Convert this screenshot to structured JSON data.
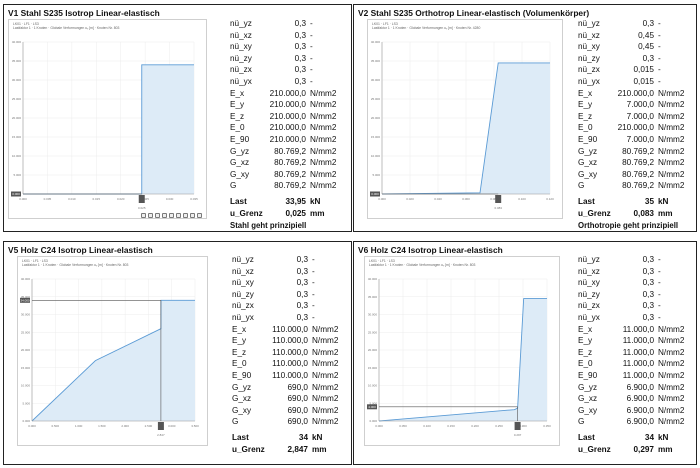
{
  "panels": [
    {
      "title": "V1 Stahl S235 Isotrop Linear-elastisch",
      "plot_header": [
        "LK01 · LF1 · LS3",
        "Lastfaktor 1 · 1 Knoten · Globale Verformungen uᵧ [m] · Knoten Nr. 803"
      ],
      "y_ticks": [
        "40.000",
        "35.000",
        "30.000",
        "25.000",
        "20.000",
        "15.000",
        "10.000",
        "5.000",
        "0.000"
      ],
      "x_ticks": [
        "0.000",
        "0.005",
        "0.010",
        "0.015",
        "0.020",
        "0.025",
        "0.030",
        "0.035"
      ],
      "marker_y": "0.000",
      "marker_x": "0.025",
      "x_axis_label": "Lastfaktor",
      "props": [
        {
          "name": "nü_yz",
          "value": "0,3",
          "unit": "-"
        },
        {
          "name": "nü_xz",
          "value": "0,3",
          "unit": "-"
        },
        {
          "name": "nü_xy",
          "value": "0,3",
          "unit": "-"
        },
        {
          "name": "nü_zy",
          "value": "0,3",
          "unit": "-"
        },
        {
          "name": "nü_zx",
          "value": "0,3",
          "unit": "-"
        },
        {
          "name": "nü_yx",
          "value": "0,3",
          "unit": "-"
        },
        {
          "name": "E_x",
          "value": "210.000,0",
          "unit": "N/mm2"
        },
        {
          "name": "E_y",
          "value": "210.000,0",
          "unit": "N/mm2"
        },
        {
          "name": "E_z",
          "value": "210.000,0",
          "unit": "N/mm2"
        },
        {
          "name": "E_0",
          "value": "210.000,0",
          "unit": "N/mm2"
        },
        {
          "name": "E_90",
          "value": "210.000,0",
          "unit": "N/mm2"
        },
        {
          "name": "G_yz",
          "value": "80.769,2",
          "unit": "N/mm2"
        },
        {
          "name": "G_xz",
          "value": "80.769,2",
          "unit": "N/mm2"
        },
        {
          "name": "G_xy",
          "value": "80.769,2",
          "unit": "N/mm2"
        },
        {
          "name": "G",
          "value": "80.769,2",
          "unit": "N/mm2"
        }
      ],
      "last": {
        "name": "Last",
        "value": "33,95",
        "unit": "kN"
      },
      "ugrenz": {
        "name": "u_Grenz",
        "value": "0,025",
        "unit": "mm"
      },
      "note": "Stahl geht prinzipiell"
    },
    {
      "title": "V2 Stahl S235 Orthotrop Linear-elastisch (Volumenkörper)",
      "plot_header": [
        "LK01 · LF1 · LS3",
        "Lastfaktor 1 · 1 Knoten · Globale Verformungen uᵧ [m] · Knoten Nr. 4280"
      ],
      "y_ticks": [
        "40.000",
        "35.000",
        "30.000",
        "25.000",
        "20.000",
        "15.000",
        "10.000",
        "5.000",
        "0.000"
      ],
      "x_ticks": [
        "0.000",
        "0.020",
        "0.040",
        "0.060",
        "0.080",
        "0.100",
        "0.120"
      ],
      "marker_y": "0.000",
      "marker_x": "0.083",
      "x_axis_label": "Lastfaktor",
      "props": [
        {
          "name": "nü_yz",
          "value": "0,3",
          "unit": "-"
        },
        {
          "name": "nü_xz",
          "value": "0,45",
          "unit": "-"
        },
        {
          "name": "nü_xy",
          "value": "0,45",
          "unit": "-"
        },
        {
          "name": "nü_zy",
          "value": "0,3",
          "unit": "-"
        },
        {
          "name": "nü_zx",
          "value": "0,015",
          "unit": "-"
        },
        {
          "name": "nü_yx",
          "value": "0,015",
          "unit": "-"
        },
        {
          "name": "E_x",
          "value": "210.000,0",
          "unit": "N/mm2"
        },
        {
          "name": "E_y",
          "value": "7.000,0",
          "unit": "N/mm2"
        },
        {
          "name": "E_z",
          "value": "7.000,0",
          "unit": "N/mm2"
        },
        {
          "name": "E_0",
          "value": "210.000,0",
          "unit": "N/mm2"
        },
        {
          "name": "E_90",
          "value": "7.000,0",
          "unit": "N/mm2"
        },
        {
          "name": "G_yz",
          "value": "80.769,2",
          "unit": "N/mm2"
        },
        {
          "name": "G_xz",
          "value": "80.769,2",
          "unit": "N/mm2"
        },
        {
          "name": "G_xy",
          "value": "80.769,2",
          "unit": "N/mm2"
        },
        {
          "name": "G",
          "value": "80.769,2",
          "unit": "N/mm2"
        }
      ],
      "last": {
        "name": "Last",
        "value": "35",
        "unit": "kN"
      },
      "ugrenz": {
        "name": "u_Grenz",
        "value": "0,083",
        "unit": "mm"
      },
      "note": "Orthotropie geht prinzipiell"
    },
    {
      "title": "V5 Holz C24 Isotrop Linear-elastisch",
      "plot_header": [
        "LK01 · LF1 · LS3",
        "Lastfaktor 1 · 1 Knoten · Globale Verformungen uᵧ [m] · Knoten Nr. 803"
      ],
      "y_ticks": [
        "40.000",
        "35.000",
        "30.000",
        "25.000",
        "20.000",
        "15.000",
        "10.000",
        "5.000",
        "0.000"
      ],
      "x_ticks": [
        "0.000",
        "0.500",
        "1.000",
        "1.500",
        "2.000",
        "2.500",
        "3.000",
        "3.500"
      ],
      "marker_y": "34.000",
      "marker_x": "2.847",
      "x_axis_label": "Lastfaktor",
      "props": [
        {
          "name": "nü_yz",
          "value": "0,3",
          "unit": "-"
        },
        {
          "name": "nü_xz",
          "value": "0,3",
          "unit": "-"
        },
        {
          "name": "nü_xy",
          "value": "0,3",
          "unit": "-"
        },
        {
          "name": "nü_zy",
          "value": "0,3",
          "unit": "-"
        },
        {
          "name": "nü_zx",
          "value": "0,3",
          "unit": "-"
        },
        {
          "name": "nü_yx",
          "value": "0,3",
          "unit": "-"
        },
        {
          "name": "E_x",
          "value": "110.000,0",
          "unit": "N/mm2"
        },
        {
          "name": "E_y",
          "value": "110.000,0",
          "unit": "N/mm2"
        },
        {
          "name": "E_z",
          "value": "110.000,0",
          "unit": "N/mm2"
        },
        {
          "name": "E_0",
          "value": "110.000,0",
          "unit": "N/mm2"
        },
        {
          "name": "E_90",
          "value": "110.000,0",
          "unit": "N/mm2"
        },
        {
          "name": "G_yz",
          "value": "690,0",
          "unit": "N/mm2"
        },
        {
          "name": "G_xz",
          "value": "690,0",
          "unit": "N/mm2"
        },
        {
          "name": "G_xy",
          "value": "690,0",
          "unit": "N/mm2"
        },
        {
          "name": "G",
          "value": "690,0",
          "unit": "N/mm2"
        }
      ],
      "last": {
        "name": "Last",
        "value": "34",
        "unit": "kN"
      },
      "ugrenz": {
        "name": "u_Grenz",
        "value": "2,847",
        "unit": "mm"
      },
      "note": ""
    },
    {
      "title": "V6 Holz C24 Isotrop Linear-elastisch",
      "plot_header": [
        "LK01 · LF1 · LS3",
        "Lastfaktor 1 · 1 Knoten · Globale Verformungen uᵧ [m] · Knoten Nr. 803"
      ],
      "y_ticks": [
        "40.000",
        "35.000",
        "30.000",
        "25.000",
        "20.000",
        "15.000",
        "10.000",
        "5.000",
        "0.000"
      ],
      "x_ticks": [
        "0.000",
        "0.050",
        "0.100",
        "0.150",
        "0.200",
        "0.250",
        "0.300",
        "0.350"
      ],
      "marker_y": "4.000",
      "marker_x": "0.297",
      "x_axis_label": "Lastfaktor",
      "props": [
        {
          "name": "nü_yz",
          "value": "0,3",
          "unit": "-"
        },
        {
          "name": "nü_xz",
          "value": "0,3",
          "unit": "-"
        },
        {
          "name": "nü_xy",
          "value": "0,3",
          "unit": "-"
        },
        {
          "name": "nü_zy",
          "value": "0,3",
          "unit": "-"
        },
        {
          "name": "nü_zx",
          "value": "0,3",
          "unit": "-"
        },
        {
          "name": "nü_yx",
          "value": "0,3",
          "unit": "-"
        },
        {
          "name": "E_x",
          "value": "11.000,0",
          "unit": "N/mm2"
        },
        {
          "name": "E_y",
          "value": "11.000,0",
          "unit": "N/mm2"
        },
        {
          "name": "E_z",
          "value": "11.000,0",
          "unit": "N/mm2"
        },
        {
          "name": "E_0",
          "value": "11.000,0",
          "unit": "N/mm2"
        },
        {
          "name": "E_90",
          "value": "11.000,0",
          "unit": "N/mm2"
        },
        {
          "name": "G_yz",
          "value": "6.900,0",
          "unit": "N/mm2"
        },
        {
          "name": "G_xz",
          "value": "6.900,0",
          "unit": "N/mm2"
        },
        {
          "name": "G_xy",
          "value": "6.900,0",
          "unit": "N/mm2"
        },
        {
          "name": "G",
          "value": "6.900,0",
          "unit": "N/mm2"
        }
      ],
      "last": {
        "name": "Last",
        "value": "34",
        "unit": "kN"
      },
      "ugrenz": {
        "name": "u_Grenz",
        "value": "0,297",
        "unit": "mm"
      },
      "note": ""
    }
  ],
  "colors": {
    "curve": "#5b9bd5",
    "fill": "#ddebf7",
    "grid": "#ececec",
    "border": "#222222"
  },
  "chart_data": [
    {
      "type": "area",
      "x": [
        0,
        0.025,
        0.025,
        0.036
      ],
      "y": [
        0,
        0,
        34,
        34
      ],
      "xlim": [
        0,
        0.036
      ],
      "ylim": [
        0,
        40
      ],
      "grid": true
    },
    {
      "type": "area",
      "x": [
        0,
        0.07,
        0.083,
        0.12
      ],
      "y": [
        0,
        0.3,
        34.5,
        34.5
      ],
      "xlim": [
        0,
        0.12
      ],
      "ylim": [
        0,
        40
      ],
      "grid": true
    },
    {
      "type": "area",
      "x": [
        0,
        1.4,
        2.847,
        2.847,
        3.6
      ],
      "y": [
        0,
        17,
        26,
        34,
        34
      ],
      "xlim": [
        0,
        3.6
      ],
      "ylim": [
        0,
        40
      ],
      "grid": true
    },
    {
      "type": "area",
      "x": [
        0,
        0.29,
        0.297,
        0.31,
        0.36
      ],
      "y": [
        0,
        3.2,
        3.6,
        34.5,
        34.5
      ],
      "xlim": [
        0,
        0.36
      ],
      "ylim": [
        0,
        40
      ],
      "grid": true
    }
  ]
}
